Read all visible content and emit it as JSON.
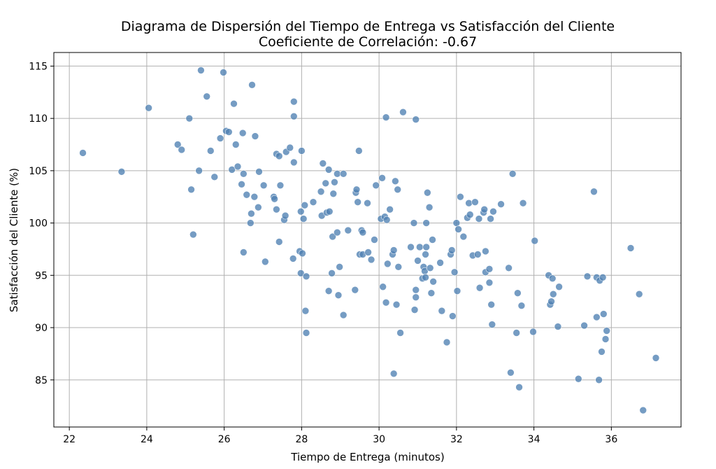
{
  "chart_data": {
    "type": "scatter",
    "title": "Diagrama de Dispersión del Tiempo de Entrega vs Satisfacción del Cliente",
    "subtitle": "Coeficiente de Correlación: -0.67",
    "xlabel": "Tiempo de Entrega (minutos)",
    "ylabel": "Satisfacción del Cliente (%)",
    "xlim": [
      21.6,
      37.8
    ],
    "ylim": [
      80.5,
      116.3
    ],
    "xticks": [
      22,
      24,
      26,
      28,
      30,
      32,
      34,
      36
    ],
    "yticks": [
      85,
      90,
      95,
      100,
      105,
      110,
      115
    ],
    "grid": true,
    "legend": "none",
    "point_color": "#4f81b3",
    "series": [
      {
        "points": [
          [
            22.35,
            106.7
          ],
          [
            23.35,
            104.9
          ],
          [
            24.05,
            111.0
          ],
          [
            24.8,
            107.5
          ],
          [
            24.9,
            107.0
          ],
          [
            25.1,
            110.0
          ],
          [
            25.15,
            103.2
          ],
          [
            25.2,
            98.9
          ],
          [
            25.35,
            105.0
          ],
          [
            25.4,
            114.6
          ],
          [
            25.55,
            112.1
          ],
          [
            25.65,
            106.9
          ],
          [
            25.75,
            104.4
          ],
          [
            25.9,
            108.1
          ],
          [
            25.98,
            114.4
          ],
          [
            26.05,
            108.8
          ],
          [
            26.12,
            108.7
          ],
          [
            26.2,
            105.1
          ],
          [
            26.25,
            111.4
          ],
          [
            26.3,
            107.5
          ],
          [
            26.35,
            105.4
          ],
          [
            26.45,
            103.7
          ],
          [
            26.48,
            108.6
          ],
          [
            26.5,
            104.7
          ],
          [
            26.5,
            97.2
          ],
          [
            26.58,
            102.7
          ],
          [
            26.68,
            100.0
          ],
          [
            26.7,
            100.9
          ],
          [
            26.72,
            113.2
          ],
          [
            26.78,
            102.5
          ],
          [
            26.8,
            108.3
          ],
          [
            26.88,
            101.5
          ],
          [
            26.9,
            104.9
          ],
          [
            27.02,
            103.6
          ],
          [
            27.06,
            96.3
          ],
          [
            27.28,
            102.5
          ],
          [
            27.3,
            102.3
          ],
          [
            27.35,
            101.3
          ],
          [
            27.35,
            106.6
          ],
          [
            27.42,
            106.4
          ],
          [
            27.42,
            98.2
          ],
          [
            27.45,
            103.6
          ],
          [
            27.55,
            100.3
          ],
          [
            27.58,
            100.7
          ],
          [
            27.6,
            106.8
          ],
          [
            27.7,
            107.2
          ],
          [
            27.78,
            96.6
          ],
          [
            27.8,
            105.8
          ],
          [
            27.8,
            110.2
          ],
          [
            27.8,
            111.6
          ],
          [
            27.95,
            97.3
          ],
          [
            27.98,
            95.2
          ],
          [
            27.98,
            101.1
          ],
          [
            28.0,
            106.9
          ],
          [
            28.02,
            97.1
          ],
          [
            28.05,
            100.4
          ],
          [
            28.08,
            101.7
          ],
          [
            28.1,
            91.6
          ],
          [
            28.12,
            94.9
          ],
          [
            28.12,
            89.5
          ],
          [
            28.3,
            102.0
          ],
          [
            28.5,
            103.0
          ],
          [
            28.52,
            100.7
          ],
          [
            28.55,
            105.7
          ],
          [
            28.62,
            103.8
          ],
          [
            28.65,
            101.0
          ],
          [
            28.7,
            105.1
          ],
          [
            28.72,
            101.1
          ],
          [
            28.7,
            93.5
          ],
          [
            28.78,
            95.2
          ],
          [
            28.8,
            98.7
          ],
          [
            28.82,
            102.8
          ],
          [
            28.85,
            103.9
          ],
          [
            28.92,
            104.7
          ],
          [
            28.92,
            99.1
          ],
          [
            28.95,
            93.1
          ],
          [
            28.98,
            95.8
          ],
          [
            29.08,
            104.7
          ],
          [
            29.08,
            91.2
          ],
          [
            29.2,
            99.3
          ],
          [
            29.38,
            93.6
          ],
          [
            29.4,
            102.9
          ],
          [
            29.42,
            103.2
          ],
          [
            29.45,
            102.0
          ],
          [
            29.48,
            106.9
          ],
          [
            29.5,
            97.0
          ],
          [
            29.55,
            99.3
          ],
          [
            29.58,
            99.1
          ],
          [
            29.58,
            97.0
          ],
          [
            29.7,
            101.9
          ],
          [
            29.72,
            97.2
          ],
          [
            29.8,
            96.5
          ],
          [
            29.88,
            98.4
          ],
          [
            29.92,
            103.6
          ],
          [
            30.05,
            100.4
          ],
          [
            30.08,
            104.3
          ],
          [
            30.1,
            93.9
          ],
          [
            30.15,
            100.6
          ],
          [
            30.18,
            92.4
          ],
          [
            30.18,
            110.1
          ],
          [
            30.2,
            100.3
          ],
          [
            30.22,
            96.1
          ],
          [
            30.28,
            101.3
          ],
          [
            30.35,
            97.0
          ],
          [
            30.38,
            97.4
          ],
          [
            30.38,
            85.6
          ],
          [
            30.42,
            104.0
          ],
          [
            30.45,
            92.2
          ],
          [
            30.48,
            103.2
          ],
          [
            30.5,
            95.8
          ],
          [
            30.55,
            89.5
          ],
          [
            30.62,
            110.6
          ],
          [
            30.82,
            97.7
          ],
          [
            30.9,
            100.0
          ],
          [
            30.92,
            91.7
          ],
          [
            30.95,
            93.6
          ],
          [
            30.95,
            92.9
          ],
          [
            30.95,
            109.9
          ],
          [
            31.0,
            96.4
          ],
          [
            31.05,
            97.7
          ],
          [
            31.12,
            94.7
          ],
          [
            31.15,
            95.8
          ],
          [
            31.18,
            95.4
          ],
          [
            31.2,
            94.8
          ],
          [
            31.2,
            97.0
          ],
          [
            31.22,
            100.0
          ],
          [
            31.22,
            97.7
          ],
          [
            31.25,
            102.9
          ],
          [
            31.3,
            101.5
          ],
          [
            31.32,
            95.7
          ],
          [
            31.35,
            93.3
          ],
          [
            31.38,
            98.4
          ],
          [
            31.4,
            94.4
          ],
          [
            31.58,
            96.2
          ],
          [
            31.62,
            91.6
          ],
          [
            31.75,
            88.6
          ],
          [
            31.85,
            97.0
          ],
          [
            31.88,
            97.4
          ],
          [
            31.9,
            91.1
          ],
          [
            31.95,
            95.3
          ],
          [
            32.0,
            100.0
          ],
          [
            32.02,
            93.5
          ],
          [
            32.05,
            99.4
          ],
          [
            32.1,
            102.5
          ],
          [
            32.18,
            98.7
          ],
          [
            32.28,
            100.5
          ],
          [
            32.32,
            101.9
          ],
          [
            32.35,
            100.8
          ],
          [
            32.42,
            96.9
          ],
          [
            32.48,
            102.0
          ],
          [
            32.55,
            97.0
          ],
          [
            32.58,
            100.4
          ],
          [
            32.6,
            93.8
          ],
          [
            32.7,
            101.0
          ],
          [
            32.72,
            101.3
          ],
          [
            32.75,
            95.3
          ],
          [
            32.75,
            97.3
          ],
          [
            32.85,
            95.6
          ],
          [
            32.85,
            94.3
          ],
          [
            32.88,
            100.4
          ],
          [
            32.9,
            92.2
          ],
          [
            32.92,
            90.3
          ],
          [
            32.95,
            101.1
          ],
          [
            33.15,
            101.8
          ],
          [
            33.35,
            95.7
          ],
          [
            33.4,
            85.7
          ],
          [
            33.45,
            104.7
          ],
          [
            33.55,
            89.5
          ],
          [
            33.58,
            93.3
          ],
          [
            33.62,
            84.3
          ],
          [
            33.68,
            92.1
          ],
          [
            33.72,
            101.9
          ],
          [
            33.98,
            89.6
          ],
          [
            34.02,
            98.3
          ],
          [
            34.38,
            95.0
          ],
          [
            34.42,
            92.2
          ],
          [
            34.45,
            92.5
          ],
          [
            34.48,
            94.7
          ],
          [
            34.5,
            93.2
          ],
          [
            34.62,
            90.1
          ],
          [
            34.65,
            93.9
          ],
          [
            35.15,
            85.1
          ],
          [
            35.3,
            90.2
          ],
          [
            35.38,
            94.9
          ],
          [
            35.55,
            103.0
          ],
          [
            35.62,
            94.8
          ],
          [
            35.62,
            91.0
          ],
          [
            35.68,
            85.0
          ],
          [
            35.7,
            94.5
          ],
          [
            35.75,
            87.7
          ],
          [
            35.78,
            94.8
          ],
          [
            35.8,
            91.3
          ],
          [
            35.85,
            88.9
          ],
          [
            35.88,
            89.7
          ],
          [
            36.5,
            97.6
          ],
          [
            36.72,
            93.2
          ],
          [
            36.82,
            82.1
          ],
          [
            37.15,
            87.1
          ]
        ]
      }
    ]
  }
}
